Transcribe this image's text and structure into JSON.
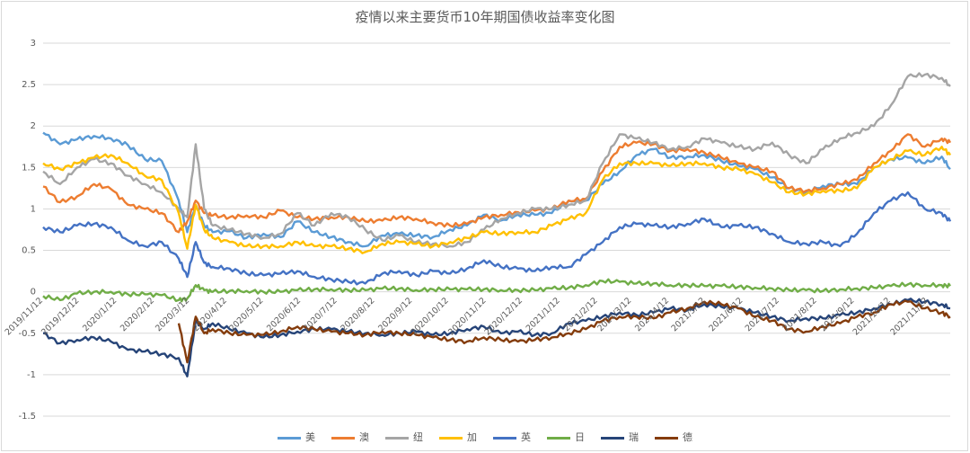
{
  "chart_data": {
    "type": "line",
    "title": "疫情以来主要货币10年期国债收益率变化图",
    "xlabel": "",
    "ylabel": "",
    "ylim": [
      -1.5,
      3
    ],
    "yticks": [
      -1.5,
      -1,
      -0.5,
      0,
      0.5,
      1,
      1.5,
      2,
      2.5,
      3
    ],
    "ytick_labels": [
      "-1.5",
      "-1",
      "-0.5",
      "0",
      "0.5",
      "1",
      "1.5",
      "2",
      "2.5",
      "3"
    ],
    "xlim": [
      "2019-11-12",
      "2021-11-30"
    ],
    "xtick_labels": [
      "2019/11/12",
      "2019/12/12",
      "2020/1/12",
      "2020/2/12",
      "2020/3/12",
      "2020/4/12",
      "2020/5/12",
      "2020/6/12",
      "2020/7/12",
      "2020/8/12",
      "2020/9/12",
      "2020/10/12",
      "2020/11/12",
      "2020/12/12",
      "2021/1/12",
      "2021/2/12",
      "2021/3/12",
      "2021/4/12",
      "2021/5/12",
      "2021/6/12",
      "2021/7/12",
      "2021/8/12",
      "2021/9/12",
      "2021/10/12",
      "2021/11/12"
    ],
    "grid": true,
    "legend_position": "bottom",
    "x": [
      "2019-11-12",
      "2019-11-26",
      "2019-12-10",
      "2019-12-24",
      "2020-01-07",
      "2020-01-21",
      "2020-02-04",
      "2020-02-18",
      "2020-03-03",
      "2020-03-10",
      "2020-03-17",
      "2020-03-24",
      "2020-03-31",
      "2020-04-14",
      "2020-04-28",
      "2020-05-12",
      "2020-05-26",
      "2020-06-09",
      "2020-06-23",
      "2020-07-07",
      "2020-07-21",
      "2020-08-04",
      "2020-08-18",
      "2020-09-01",
      "2020-09-15",
      "2020-09-29",
      "2020-10-13",
      "2020-10-27",
      "2020-11-10",
      "2020-11-24",
      "2020-12-08",
      "2020-12-22",
      "2021-01-05",
      "2021-01-19",
      "2021-02-02",
      "2021-02-16",
      "2021-03-02",
      "2021-03-16",
      "2021-03-30",
      "2021-04-13",
      "2021-04-27",
      "2021-05-11",
      "2021-05-25",
      "2021-06-08",
      "2021-06-22",
      "2021-07-06",
      "2021-07-20",
      "2021-08-03",
      "2021-08-17",
      "2021-08-31",
      "2021-09-14",
      "2021-09-28",
      "2021-10-12",
      "2021-10-26",
      "2021-11-09",
      "2021-11-23",
      "2021-11-30"
    ],
    "series": [
      {
        "name": "美",
        "color": "#5b9bd5",
        "values": [
          1.92,
          1.78,
          1.84,
          1.88,
          1.85,
          1.77,
          1.6,
          1.58,
          1.1,
          0.72,
          1.05,
          0.8,
          0.72,
          0.73,
          0.65,
          0.7,
          0.66,
          0.85,
          0.72,
          0.66,
          0.6,
          0.55,
          0.68,
          0.7,
          0.68,
          0.66,
          0.75,
          0.8,
          0.93,
          0.86,
          0.93,
          0.93,
          0.95,
          1.1,
          1.1,
          1.3,
          1.45,
          1.65,
          1.72,
          1.62,
          1.63,
          1.65,
          1.58,
          1.52,
          1.48,
          1.38,
          1.25,
          1.2,
          1.28,
          1.3,
          1.3,
          1.5,
          1.6,
          1.62,
          1.55,
          1.63,
          1.48
        ]
      },
      {
        "name": "澳",
        "color": "#ed7d31",
        "values": [
          1.27,
          1.08,
          1.15,
          1.3,
          1.24,
          1.05,
          1.0,
          0.95,
          0.72,
          0.85,
          1.1,
          0.95,
          0.92,
          0.9,
          0.92,
          0.9,
          0.98,
          0.9,
          0.88,
          0.9,
          0.9,
          0.85,
          0.86,
          0.9,
          0.88,
          0.83,
          0.8,
          0.82,
          0.9,
          0.93,
          0.96,
          0.98,
          1.0,
          1.1,
          1.12,
          1.45,
          1.75,
          1.8,
          1.78,
          1.7,
          1.72,
          1.68,
          1.62,
          1.55,
          1.5,
          1.45,
          1.25,
          1.22,
          1.25,
          1.3,
          1.35,
          1.55,
          1.7,
          1.9,
          1.75,
          1.85,
          1.8
        ]
      },
      {
        "name": "纽",
        "color": "#a5a5a5",
        "values": [
          1.45,
          1.3,
          1.5,
          1.6,
          1.55,
          1.4,
          1.3,
          1.2,
          1.0,
          0.9,
          1.78,
          1.0,
          0.8,
          0.75,
          0.7,
          0.65,
          0.7,
          0.95,
          0.8,
          0.95,
          0.9,
          0.75,
          0.62,
          0.68,
          0.6,
          0.58,
          0.55,
          0.6,
          0.75,
          0.88,
          0.95,
          1.0,
          1.0,
          1.05,
          1.1,
          1.55,
          1.9,
          1.85,
          1.8,
          1.72,
          1.75,
          1.85,
          1.8,
          1.75,
          1.72,
          1.8,
          1.65,
          1.55,
          1.72,
          1.85,
          1.92,
          2.0,
          2.25,
          2.6,
          2.62,
          2.58,
          2.48
        ]
      },
      {
        "name": "加",
        "color": "#ffc000",
        "values": [
          1.55,
          1.48,
          1.55,
          1.62,
          1.65,
          1.55,
          1.4,
          1.35,
          0.95,
          0.52,
          1.05,
          0.75,
          0.65,
          0.6,
          0.55,
          0.55,
          0.55,
          0.6,
          0.55,
          0.55,
          0.52,
          0.48,
          0.58,
          0.6,
          0.58,
          0.55,
          0.6,
          0.65,
          0.72,
          0.7,
          0.72,
          0.72,
          0.8,
          0.88,
          0.95,
          1.35,
          1.55,
          1.55,
          1.55,
          1.52,
          1.55,
          1.55,
          1.5,
          1.48,
          1.42,
          1.32,
          1.2,
          1.18,
          1.22,
          1.22,
          1.25,
          1.5,
          1.6,
          1.7,
          1.65,
          1.75,
          1.65
        ]
      },
      {
        "name": "英",
        "color": "#4472c4",
        "values": [
          0.78,
          0.72,
          0.8,
          0.82,
          0.78,
          0.62,
          0.55,
          0.6,
          0.4,
          0.18,
          0.6,
          0.35,
          0.3,
          0.28,
          0.22,
          0.2,
          0.22,
          0.25,
          0.18,
          0.15,
          0.12,
          0.1,
          0.22,
          0.25,
          0.2,
          0.25,
          0.22,
          0.28,
          0.38,
          0.3,
          0.28,
          0.25,
          0.3,
          0.3,
          0.45,
          0.6,
          0.78,
          0.82,
          0.8,
          0.78,
          0.82,
          0.88,
          0.78,
          0.8,
          0.78,
          0.7,
          0.6,
          0.58,
          0.6,
          0.55,
          0.7,
          0.95,
          1.1,
          1.2,
          1.0,
          0.95,
          0.85
        ]
      },
      {
        "name": "日",
        "color": "#70ad47",
        "values": [
          -0.05,
          -0.1,
          -0.02,
          0.0,
          0.0,
          -0.03,
          -0.03,
          -0.04,
          -0.1,
          -0.08,
          0.08,
          0.02,
          0.0,
          0.01,
          0.01,
          0.0,
          0.0,
          0.02,
          0.03,
          0.03,
          0.02,
          0.02,
          0.04,
          0.04,
          0.02,
          0.03,
          0.03,
          0.03,
          0.03,
          0.02,
          0.02,
          0.02,
          0.04,
          0.05,
          0.08,
          0.13,
          0.12,
          0.1,
          0.1,
          0.08,
          0.08,
          0.07,
          0.07,
          0.06,
          0.05,
          0.04,
          0.02,
          0.02,
          0.01,
          0.03,
          0.04,
          0.05,
          0.07,
          0.09,
          0.08,
          0.08,
          0.07
        ]
      },
      {
        "name": "瑞",
        "color": "#264478",
        "values": [
          -0.5,
          -0.62,
          -0.58,
          -0.55,
          -0.6,
          -0.7,
          -0.72,
          -0.75,
          -0.8,
          -1.02,
          -0.35,
          -0.45,
          -0.38,
          -0.45,
          -0.5,
          -0.55,
          -0.52,
          -0.48,
          -0.45,
          -0.45,
          -0.48,
          -0.5,
          -0.52,
          -0.5,
          -0.48,
          -0.52,
          -0.5,
          -0.45,
          -0.42,
          -0.5,
          -0.48,
          -0.52,
          -0.5,
          -0.38,
          -0.35,
          -0.3,
          -0.25,
          -0.28,
          -0.25,
          -0.2,
          -0.22,
          -0.15,
          -0.18,
          -0.2,
          -0.25,
          -0.3,
          -0.35,
          -0.32,
          -0.32,
          -0.28,
          -0.25,
          -0.2,
          -0.15,
          -0.1,
          -0.12,
          -0.15,
          -0.2
        ]
      },
      {
        "name": "德",
        "color": "#843c0c",
        "values": [
          null,
          null,
          null,
          null,
          null,
          null,
          null,
          null,
          -0.38,
          -0.85,
          -0.3,
          -0.5,
          -0.45,
          -0.5,
          -0.52,
          -0.52,
          -0.48,
          -0.42,
          -0.45,
          -0.48,
          -0.5,
          -0.52,
          -0.48,
          -0.5,
          -0.52,
          -0.55,
          -0.58,
          -0.6,
          -0.55,
          -0.58,
          -0.6,
          -0.58,
          -0.55,
          -0.5,
          -0.45,
          -0.35,
          -0.3,
          -0.3,
          -0.32,
          -0.25,
          -0.2,
          -0.12,
          -0.15,
          -0.2,
          -0.3,
          -0.35,
          -0.45,
          -0.48,
          -0.42,
          -0.38,
          -0.3,
          -0.25,
          -0.15,
          -0.12,
          -0.2,
          -0.25,
          -0.3
        ]
      }
    ]
  }
}
